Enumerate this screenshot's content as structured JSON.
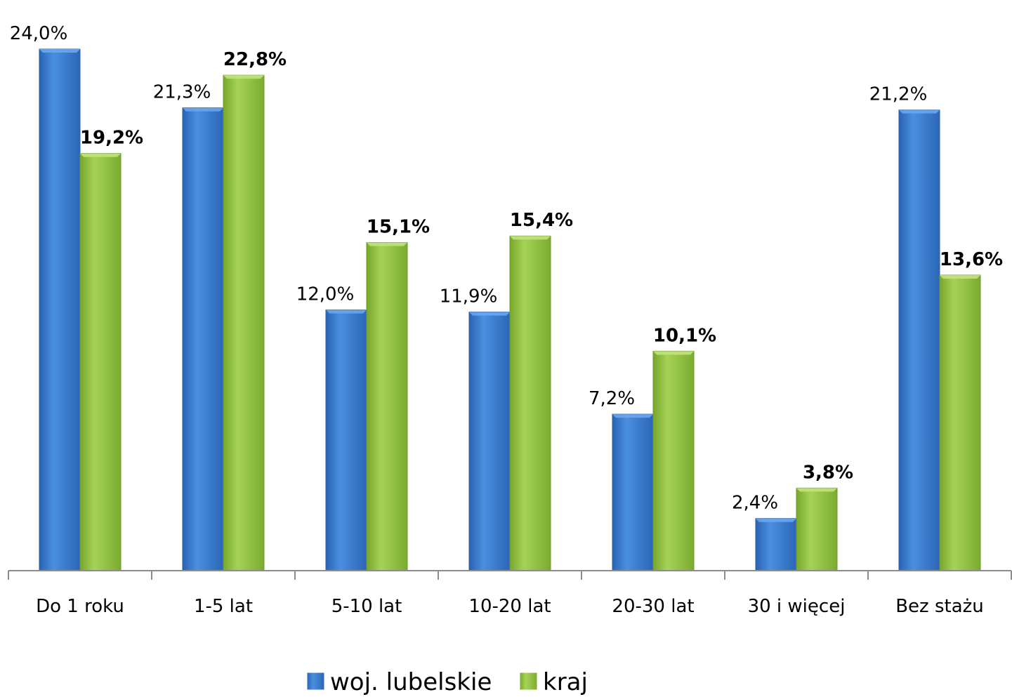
{
  "chart_data": {
    "type": "bar",
    "categories": [
      "Do 1 roku",
      "1-5 lat",
      "5-10 lat",
      "10-20 lat",
      "20-30 lat",
      "30 i więcej",
      "Bez stażu"
    ],
    "series": [
      {
        "name": "woj. lubelskie",
        "values": [
          24.0,
          21.3,
          12.0,
          11.9,
          7.2,
          2.4,
          21.2
        ],
        "labels": [
          "24,0%",
          "21,3%",
          "12,0%",
          "11,9%",
          "7,2%",
          "2,4%",
          "21,2%"
        ],
        "color": "#3a7fd0"
      },
      {
        "name": "kraj",
        "values": [
          19.2,
          22.8,
          15.1,
          15.4,
          10.1,
          3.8,
          13.6
        ],
        "labels": [
          "19,2%",
          "22,8%",
          "15,1%",
          "15,4%",
          "10,1%",
          "3,8%",
          "13,6%"
        ],
        "color": "#94c341"
      }
    ],
    "ylim": [
      0,
      24
    ],
    "grid": false,
    "legend": "bottom"
  }
}
